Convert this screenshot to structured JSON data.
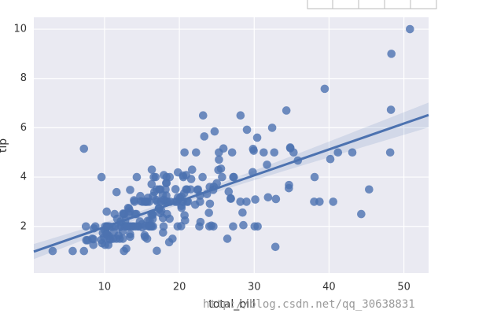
{
  "chart_data": {
    "type": "scatter",
    "x_label": "total_bill",
    "y_label": "tip",
    "watermark": "http://blog.csdn.net/qq_30638831",
    "color": "#4c72b0",
    "grid": true,
    "regression": true,
    "xlim": [
      0.55,
      53.3
    ],
    "ylim": [
      0.11,
      10.48
    ],
    "xticks": [
      10,
      20,
      30,
      40,
      50
    ],
    "yticks": [
      2,
      4,
      6,
      8,
      10
    ],
    "x": [
      16.99,
      10.34,
      21.01,
      23.68,
      24.59,
      25.29,
      8.77,
      26.88,
      15.04,
      14.78,
      10.27,
      35.26,
      15.42,
      18.43,
      14.83,
      21.58,
      10.33,
      16.29,
      16.97,
      20.65,
      17.92,
      20.29,
      15.77,
      39.42,
      19.82,
      17.81,
      13.37,
      12.69,
      21.7,
      19.65,
      9.55,
      18.35,
      15.06,
      20.69,
      17.78,
      24.06,
      16.31,
      16.93,
      18.69,
      31.27,
      16.04,
      17.46,
      13.94,
      9.68,
      30.4,
      18.29,
      22.23,
      32.4,
      28.55,
      18.04,
      12.54,
      10.29,
      34.81,
      9.94,
      25.56,
      19.49,
      38.01,
      26.41,
      11.24,
      48.27,
      20.29,
      13.81,
      11.02,
      18.29,
      17.59,
      20.08,
      16.45,
      3.07,
      20.23,
      15.01,
      12.02,
      17.07,
      26.86,
      25.28,
      14.73,
      10.51,
      17.92,
      27.2,
      22.76,
      17.29,
      19.44,
      16.66,
      10.07,
      32.68,
      15.98,
      34.83,
      13.03,
      18.28,
      24.71,
      21.16,
      28.97,
      22.49,
      5.75,
      16.32,
      22.75,
      40.17,
      27.28,
      12.03,
      21.01,
      12.46,
      11.35,
      15.38,
      44.3,
      22.42,
      20.92,
      15.36,
      20.49,
      25.21,
      18.24,
      14.31,
      14.0,
      7.25,
      38.07,
      23.95,
      25.71,
      17.31,
      29.93,
      10.65,
      12.43,
      24.08,
      11.69,
      13.42,
      14.26,
      15.95,
      12.48,
      29.8,
      8.52,
      14.52,
      11.38,
      22.82,
      19.08,
      20.27,
      11.17,
      12.26,
      18.26,
      8.51,
      10.33,
      14.15,
      16.0,
      13.16,
      17.47,
      34.3,
      41.19,
      27.05,
      16.43,
      8.35,
      18.64,
      11.87,
      9.78,
      7.51,
      14.07,
      13.13,
      17.26,
      24.55,
      19.77,
      29.85,
      48.17,
      25.0,
      13.39,
      16.49,
      21.5,
      12.66,
      16.21,
      13.81,
      17.51,
      24.52,
      20.76,
      31.71,
      10.59,
      10.63,
      50.81,
      15.81,
      7.25,
      31.85,
      16.82,
      32.9,
      17.89,
      14.48,
      9.6,
      34.63,
      34.65,
      23.33,
      45.35,
      23.17,
      40.55,
      20.69,
      20.9,
      30.46,
      18.15,
      23.1,
      15.69,
      19.81,
      28.44,
      15.48,
      16.58,
      7.56,
      10.34,
      43.11,
      13.0,
      13.51,
      18.71,
      12.74,
      13.0,
      16.4,
      20.53,
      16.47,
      26.59,
      38.73,
      24.27,
      12.76,
      30.06,
      25.89,
      48.33,
      13.27,
      28.17,
      12.9,
      28.15,
      11.59,
      7.74,
      30.14,
      12.16,
      13.42,
      8.58,
      15.98,
      13.42,
      16.27,
      10.09,
      20.45,
      13.28,
      22.12,
      24.01,
      15.69,
      11.61,
      10.77,
      15.53,
      10.07,
      12.6,
      32.83,
      35.83,
      29.03,
      27.18,
      22.67,
      17.82,
      18.78
    ],
    "y": [
      1.01,
      1.66,
      3.5,
      3.31,
      3.61,
      4.71,
      2.0,
      3.12,
      1.96,
      3.23,
      1.71,
      5.0,
      1.57,
      3.0,
      3.02,
      3.92,
      1.67,
      3.71,
      3.5,
      3.35,
      4.08,
      2.75,
      2.23,
      7.58,
      3.18,
      2.34,
      2.0,
      2.0,
      4.3,
      3.0,
      1.45,
      2.5,
      3.0,
      2.45,
      3.27,
      3.6,
      2.0,
      3.07,
      2.31,
      5.0,
      2.24,
      2.54,
      3.06,
      1.32,
      5.6,
      3.0,
      5.0,
      6.0,
      2.05,
      3.0,
      2.5,
      2.6,
      5.2,
      1.56,
      4.34,
      3.51,
      3.0,
      1.5,
      1.76,
      6.73,
      3.21,
      2.0,
      1.98,
      3.76,
      2.64,
      3.15,
      2.47,
      1.0,
      2.01,
      2.09,
      1.97,
      3.0,
      3.14,
      5.0,
      2.2,
      1.25,
      3.08,
      4.0,
      3.0,
      2.71,
      3.0,
      3.4,
      1.83,
      5.0,
      2.03,
      5.17,
      2.0,
      4.0,
      5.85,
      3.0,
      3.0,
      3.5,
      1.0,
      4.3,
      3.25,
      4.73,
      4.0,
      1.5,
      3.0,
      1.5,
      2.5,
      3.0,
      2.5,
      3.48,
      4.08,
      1.64,
      4.06,
      4.29,
      3.76,
      4.0,
      3.0,
      1.0,
      4.0,
      2.55,
      4.0,
      3.5,
      5.07,
      1.5,
      1.8,
      2.92,
      2.31,
      1.68,
      2.5,
      2.0,
      2.52,
      4.2,
      1.48,
      2.0,
      2.0,
      2.18,
      1.5,
      2.83,
      1.5,
      2.0,
      3.25,
      1.25,
      2.0,
      2.0,
      2.0,
      2.75,
      3.5,
      6.7,
      5.0,
      5.0,
      2.3,
      1.5,
      1.36,
      1.63,
      1.73,
      2.0,
      2.5,
      2.0,
      2.74,
      2.0,
      2.0,
      5.14,
      5.0,
      3.75,
      2.61,
      2.0,
      3.5,
      2.5,
      2.0,
      2.0,
      3.0,
      3.48,
      2.24,
      4.5,
      1.61,
      2.0,
      10.0,
      3.16,
      5.15,
      3.18,
      4.0,
      3.11,
      2.0,
      2.0,
      4.0,
      3.55,
      3.68,
      5.65,
      3.5,
      6.5,
      3.0,
      5.0,
      3.5,
      2.0,
      3.5,
      4.0,
      1.5,
      4.19,
      2.56,
      2.02,
      4.0,
      1.44,
      2.0,
      5.0,
      2.0,
      2.0,
      4.0,
      2.01,
      2.0,
      2.5,
      4.0,
      3.23,
      3.41,
      3.0,
      2.03,
      2.23,
      2.0,
      5.16,
      9.0,
      2.5,
      6.5,
      1.1,
      3.0,
      1.5,
      1.44,
      3.09,
      2.2,
      3.48,
      1.92,
      3.0,
      1.58,
      2.5,
      2.0,
      3.0,
      2.72,
      2.88,
      2.0,
      3.0,
      3.39,
      1.47,
      3.0,
      1.25,
      1.0,
      1.17,
      4.67,
      5.92,
      2.0,
      2.0,
      1.75,
      3.0
    ]
  }
}
